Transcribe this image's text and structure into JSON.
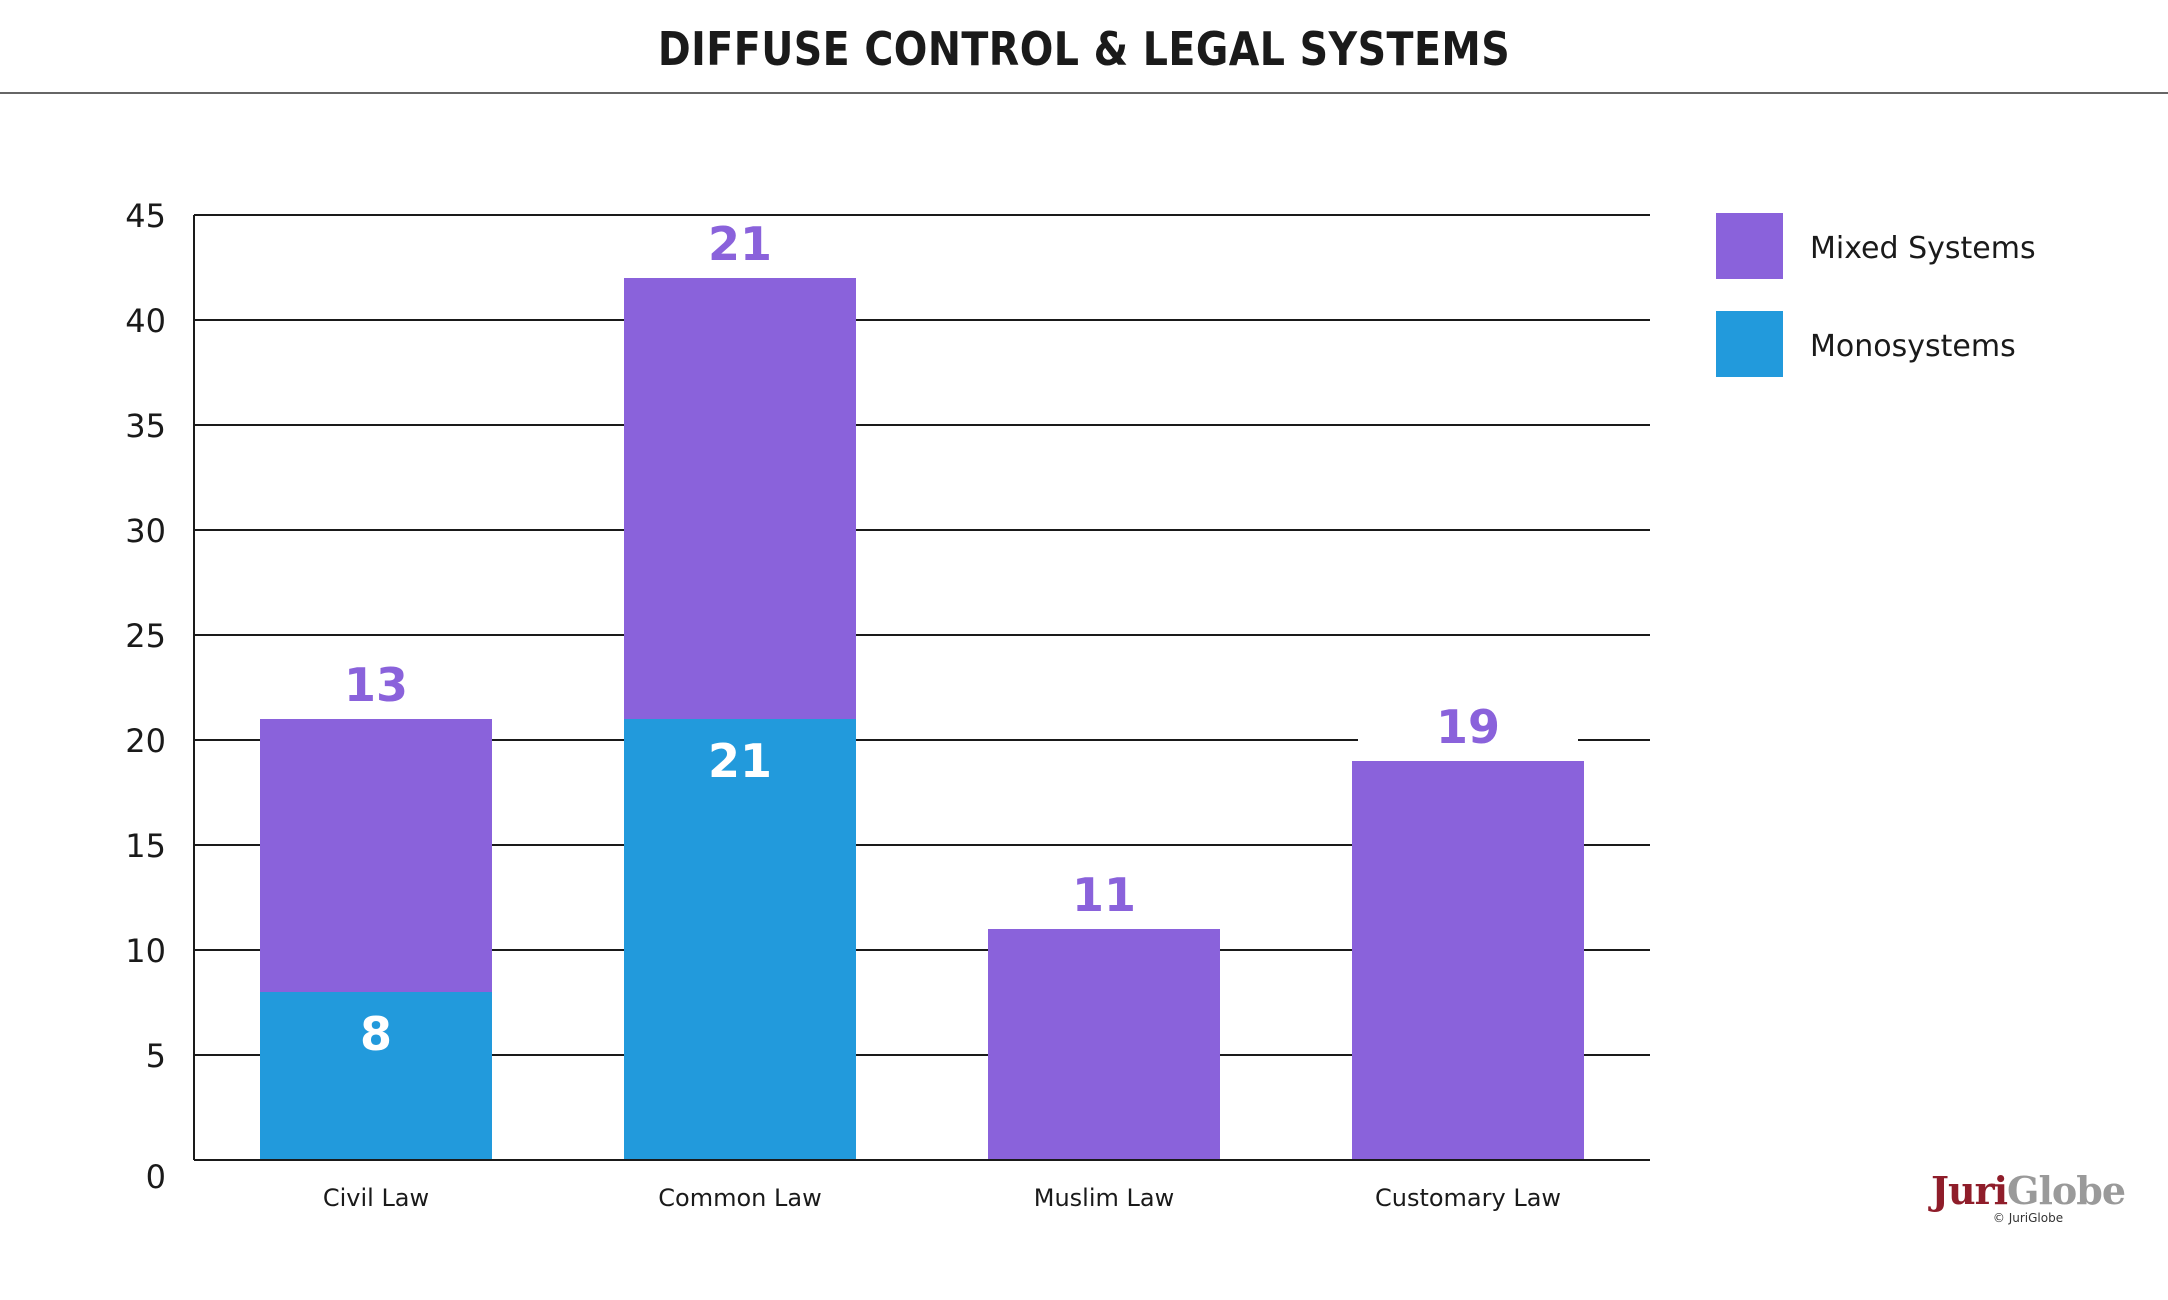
{
  "page": {
    "title": "DIFFUSE CONTROL & LEGAL SYSTEMS",
    "logo": {
      "part1": "Juri",
      "part2": "Globe",
      "copyright": "© JuriGlobe"
    }
  },
  "chart_data": {
    "type": "bar",
    "stacked": true,
    "title": "DIFFUSE CONTROL & LEGAL SYSTEMS",
    "xlabel": "",
    "ylabel": "",
    "categories": [
      "Civil Law",
      "Common Law",
      "Muslim Law",
      "Customary Law"
    ],
    "series": [
      {
        "name": "Monosystems",
        "color": "#229adc",
        "values": [
          8,
          21,
          0,
          0
        ],
        "label_color": "#ffffff"
      },
      {
        "name": "Mixed Systems",
        "color": "#8a62db",
        "values": [
          13,
          21,
          11,
          19
        ],
        "label_color": "#8a62db"
      }
    ],
    "legend_order": [
      "Mixed Systems",
      "Monosystems"
    ],
    "legend_position": "top-right",
    "ylim": [
      0,
      45
    ],
    "yticks": [
      0,
      5,
      10,
      15,
      20,
      25,
      30,
      35,
      40,
      45
    ],
    "grid": true
  }
}
